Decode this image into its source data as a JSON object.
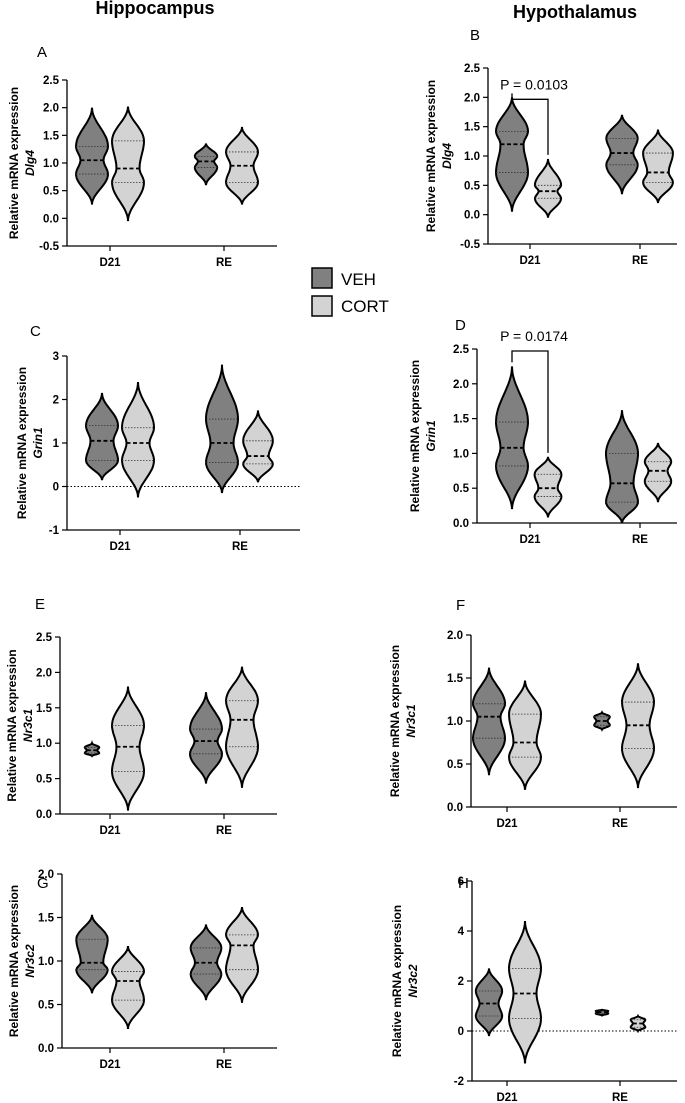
{
  "figure": {
    "column_titles": [
      "Hippocampus",
      "Hypothalamus"
    ],
    "legend": [
      {
        "label": "VEH",
        "color": "#808080"
      },
      {
        "label": "CORT",
        "color": "#d3d3d3"
      }
    ]
  },
  "chart_data": [
    {
      "type": "violin",
      "letter": "A",
      "region": "Hippocampus",
      "ylabel": "Relative mRNA expression",
      "gene": "Dlg4",
      "categories": [
        "D21",
        "RE"
      ],
      "ylim": [
        -0.5,
        2.5
      ],
      "yticks": [
        "-0.5",
        "0.0",
        "0.5",
        "1.0",
        "1.5",
        "2.0",
        "2.5"
      ],
      "series": [
        {
          "name": "VEH",
          "color": "#808080",
          "groups": [
            {
              "min": 0.25,
              "max": 2.0,
              "median": 1.05,
              "q1": 0.8,
              "q3": 1.3
            },
            {
              "min": 0.6,
              "max": 1.35,
              "median": 1.03,
              "q1": 0.92,
              "q3": 1.12
            }
          ]
        },
        {
          "name": "CORT",
          "color": "#d3d3d3",
          "groups": [
            {
              "min": -0.05,
              "max": 2.02,
              "median": 0.9,
              "q1": 0.65,
              "q3": 1.4
            },
            {
              "min": 0.25,
              "max": 1.65,
              "median": 0.95,
              "q1": 0.65,
              "q3": 1.2
            }
          ]
        }
      ]
    },
    {
      "type": "violin",
      "letter": "B",
      "region": "Hypothalamus",
      "ylabel": "Relative mRNA expression",
      "gene": "Dlg4",
      "categories": [
        "D21",
        "RE"
      ],
      "ylim": [
        -0.5,
        2.5
      ],
      "yticks": [
        "-0.5",
        "0.0",
        "0.5",
        "1.0",
        "1.5",
        "2.0",
        "2.5"
      ],
      "series": [
        {
          "name": "VEH",
          "color": "#808080",
          "groups": [
            {
              "min": 0.05,
              "max": 2.0,
              "median": 1.2,
              "q1": 0.72,
              "q3": 1.42
            },
            {
              "min": 0.35,
              "max": 1.7,
              "median": 1.05,
              "q1": 0.85,
              "q3": 1.3
            }
          ]
        },
        {
          "name": "CORT",
          "color": "#d3d3d3",
          "groups": [
            {
              "min": -0.05,
              "max": 0.95,
              "median": 0.4,
              "q1": 0.28,
              "q3": 0.5
            },
            {
              "min": 0.2,
              "max": 1.45,
              "median": 0.72,
              "q1": 0.55,
              "q3": 1.05
            }
          ]
        }
      ],
      "annotation": {
        "text": "P = 0.0103",
        "from_group": 0,
        "y": 2.0
      }
    },
    {
      "type": "violin",
      "letter": "C",
      "region": "Hippocampus",
      "ylabel": "Relative mRNA expression",
      "gene": "Grin1",
      "categories": [
        "D21",
        "RE"
      ],
      "ylim": [
        -1,
        3
      ],
      "yticks": [
        "-1",
        "0",
        "1",
        "2",
        "3"
      ],
      "zero_line": true,
      "series": [
        {
          "name": "VEH",
          "color": "#808080",
          "groups": [
            {
              "min": 0.15,
              "max": 2.15,
              "median": 1.05,
              "q1": 0.6,
              "q3": 1.4
            },
            {
              "min": -0.15,
              "max": 2.8,
              "median": 1.0,
              "q1": 0.55,
              "q3": 1.55
            }
          ]
        },
        {
          "name": "CORT",
          "color": "#d3d3d3",
          "groups": [
            {
              "min": -0.25,
              "max": 2.4,
              "median": 1.0,
              "q1": 0.6,
              "q3": 1.35
            },
            {
              "min": 0.1,
              "max": 1.75,
              "median": 0.7,
              "q1": 0.52,
              "q3": 1.05
            }
          ]
        }
      ]
    },
    {
      "type": "violin",
      "letter": "D",
      "region": "Hypothalamus",
      "ylabel": "Relative mRNA expression",
      "gene": "Grin1",
      "categories": [
        "D21",
        "RE"
      ],
      "ylim": [
        0.0,
        2.5
      ],
      "yticks": [
        "0.0",
        "0.5",
        "1.0",
        "1.5",
        "2.0",
        "2.5"
      ],
      "series": [
        {
          "name": "VEH",
          "color": "#808080",
          "groups": [
            {
              "min": 0.2,
              "max": 2.25,
              "median": 1.08,
              "q1": 0.82,
              "q3": 1.45
            },
            {
              "min": 0.0,
              "max": 1.62,
              "median": 0.57,
              "q1": 0.3,
              "q3": 1.0
            }
          ]
        },
        {
          "name": "CORT",
          "color": "#d3d3d3",
          "groups": [
            {
              "min": 0.08,
              "max": 0.95,
              "median": 0.5,
              "q1": 0.38,
              "q3": 0.7
            },
            {
              "min": 0.3,
              "max": 1.15,
              "median": 0.75,
              "q1": 0.6,
              "q3": 0.88
            }
          ]
        }
      ],
      "annotation": {
        "text": "P = 0.0174",
        "from_group": 0,
        "y": 2.5
      }
    },
    {
      "type": "violin",
      "letter": "E",
      "region": "Hippocampus",
      "ylabel": "Relative mRNA expression",
      "gene": "Nr3c1",
      "categories": [
        "D21",
        "RE"
      ],
      "ylim": [
        0.0,
        2.5
      ],
      "yticks": [
        "0.0",
        "0.5",
        "1.0",
        "1.5",
        "2.0",
        "2.5"
      ],
      "series": [
        {
          "name": "VEH",
          "color": "#808080",
          "groups": [
            {
              "min": 0.82,
              "max": 1.0,
              "median": 0.9,
              "q1": 0.86,
              "q3": 0.94
            },
            {
              "min": 0.43,
              "max": 1.72,
              "median": 1.03,
              "q1": 0.85,
              "q3": 1.2
            }
          ]
        },
        {
          "name": "CORT",
          "color": "#d3d3d3",
          "groups": [
            {
              "min": 0.05,
              "max": 1.8,
              "median": 0.95,
              "q1": 0.6,
              "q3": 1.25
            },
            {
              "min": 0.37,
              "max": 2.08,
              "median": 1.33,
              "q1": 0.95,
              "q3": 1.6
            }
          ]
        }
      ]
    },
    {
      "type": "violin",
      "letter": "F",
      "region": "Hypothalamus",
      "ylabel": "Relative mRNA expression",
      "gene": "Nr3c1",
      "categories": [
        "D21",
        "RE"
      ],
      "ylim": [
        0.0,
        2.0
      ],
      "yticks": [
        "0.0",
        "0.5",
        "1.0",
        "1.5",
        "2.0"
      ],
      "series": [
        {
          "name": "VEH",
          "color": "#808080",
          "groups": [
            {
              "min": 0.37,
              "max": 1.62,
              "median": 1.05,
              "q1": 0.8,
              "q3": 1.2
            },
            {
              "min": 0.9,
              "max": 1.1,
              "median": 1.0,
              "q1": 0.95,
              "q3": 1.05
            }
          ]
        },
        {
          "name": "CORT",
          "color": "#d3d3d3",
          "groups": [
            {
              "min": 0.2,
              "max": 1.47,
              "median": 0.75,
              "q1": 0.58,
              "q3": 1.08
            },
            {
              "min": 0.22,
              "max": 1.67,
              "median": 0.95,
              "q1": 0.68,
              "q3": 1.22
            }
          ]
        }
      ]
    },
    {
      "type": "violin",
      "letter": "G",
      "region": "Hippocampus",
      "ylabel": "Relative mRNA expression",
      "gene": "Nr3c2",
      "categories": [
        "D21",
        "RE"
      ],
      "ylim": [
        0.0,
        2.0
      ],
      "yticks": [
        "0.0",
        "0.5",
        "1.0",
        "1.5",
        "2.0"
      ],
      "series": [
        {
          "name": "VEH",
          "color": "#808080",
          "groups": [
            {
              "min": 0.63,
              "max": 1.53,
              "median": 0.98,
              "q1": 0.9,
              "q3": 1.25
            },
            {
              "min": 0.55,
              "max": 1.42,
              "median": 0.98,
              "q1": 0.85,
              "q3": 1.15
            }
          ]
        },
        {
          "name": "CORT",
          "color": "#d3d3d3",
          "groups": [
            {
              "min": 0.22,
              "max": 1.17,
              "median": 0.77,
              "q1": 0.55,
              "q3": 0.88
            },
            {
              "min": 0.52,
              "max": 1.62,
              "median": 1.18,
              "q1": 0.9,
              "q3": 1.3
            }
          ]
        }
      ]
    },
    {
      "type": "violin",
      "letter": "H",
      "region": "Hypothalamus",
      "ylabel": "Relative mRNA expression",
      "gene": "Nr3c2",
      "categories": [
        "D21",
        "RE"
      ],
      "ylim": [
        -2,
        6
      ],
      "yticks": [
        "-2",
        "0",
        "2",
        "4",
        "6"
      ],
      "zero_line": true,
      "series": [
        {
          "name": "VEH",
          "color": "#808080",
          "groups": [
            {
              "min": -0.2,
              "max": 2.5,
              "median": 1.1,
              "q1": 0.6,
              "q3": 1.6
            },
            {
              "min": 0.62,
              "max": 0.85,
              "median": 0.75,
              "q1": 0.7,
              "q3": 0.8
            }
          ]
        },
        {
          "name": "CORT",
          "color": "#d3d3d3",
          "groups": [
            {
              "min": -1.3,
              "max": 4.4,
              "median": 1.5,
              "q1": 0.5,
              "q3": 2.5
            },
            {
              "min": 0.0,
              "max": 0.6,
              "median": 0.3,
              "q1": 0.15,
              "q3": 0.45
            }
          ]
        }
      ]
    }
  ]
}
